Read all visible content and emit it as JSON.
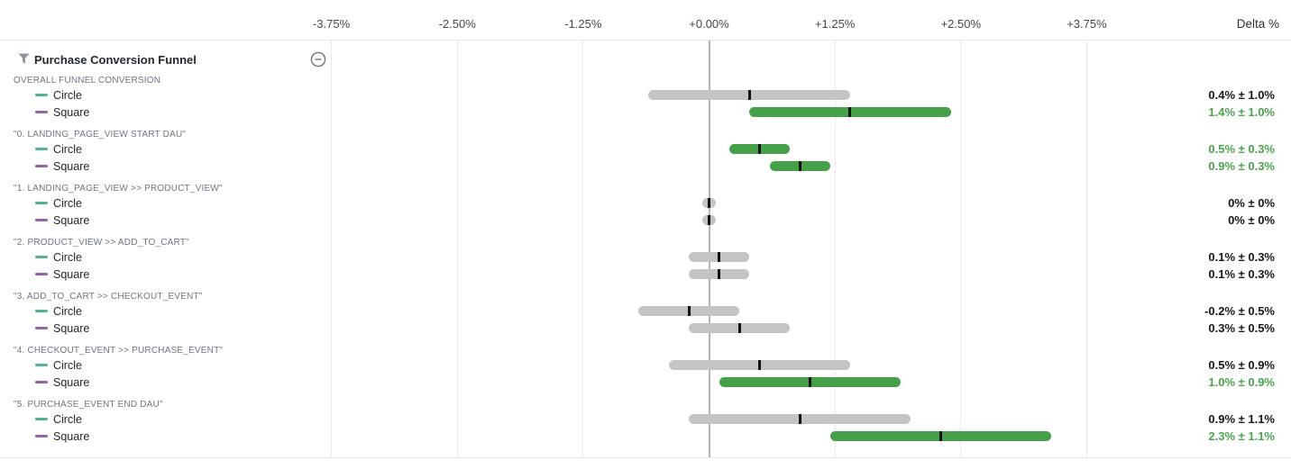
{
  "header": {
    "title": "Purchase Conversion Funnel"
  },
  "axis": {
    "delta_label": "Delta %",
    "ticks": [
      {
        "label": "-3.75%",
        "pct": -3.75
      },
      {
        "label": "-2.50%",
        "pct": -2.5
      },
      {
        "label": "-1.25%",
        "pct": -1.25
      },
      {
        "label": "+0.00%",
        "pct": 0
      },
      {
        "label": "+1.25%",
        "pct": 1.25
      },
      {
        "label": "+2.50%",
        "pct": 2.5
      },
      {
        "label": "+3.75%",
        "pct": 3.75
      }
    ]
  },
  "legend_variants": [
    {
      "name": "Circle",
      "swatch_color": "#57b295"
    },
    {
      "name": "Square",
      "swatch_color": "#9a5fb0"
    }
  ],
  "chart_data": {
    "type": "bar",
    "subtype": "horizontal_confidence_interval",
    "title": "Purchase Conversion Funnel",
    "xlabel": "Delta %",
    "x_ticks": [
      "-3.75%",
      "-2.50%",
      "-1.25%",
      "+0.00%",
      "+1.25%",
      "+2.50%",
      "+3.75%"
    ],
    "x_tick_pcts": [
      -3.75,
      -2.5,
      -1.25,
      0,
      1.25,
      2.5,
      3.75
    ],
    "grid": true,
    "zero_line": true,
    "groups": [
      {
        "label": "OVERALL FUNNEL CONVERSION",
        "rows": [
          {
            "variant": "Circle",
            "delta_pct": 0.4,
            "margin_pct": 1.0,
            "display": "0.4% ± 1.0%",
            "significant": false
          },
          {
            "variant": "Square",
            "delta_pct": 1.4,
            "margin_pct": 1.0,
            "display": "1.4% ± 1.0%",
            "significant": true
          }
        ]
      },
      {
        "label": "\"0. LANDING_PAGE_VIEW START DAU\"",
        "rows": [
          {
            "variant": "Circle",
            "delta_pct": 0.5,
            "margin_pct": 0.3,
            "display": "0.5% ± 0.3%",
            "significant": true
          },
          {
            "variant": "Square",
            "delta_pct": 0.9,
            "margin_pct": 0.3,
            "display": "0.9% ± 0.3%",
            "significant": true
          }
        ]
      },
      {
        "label": "\"1. LANDING_PAGE_VIEW >> PRODUCT_VIEW\"",
        "rows": [
          {
            "variant": "Circle",
            "delta_pct": 0,
            "margin_pct": 0,
            "display": "0% ± 0%",
            "significant": false
          },
          {
            "variant": "Square",
            "delta_pct": 0,
            "margin_pct": 0,
            "display": "0% ± 0%",
            "significant": false
          }
        ]
      },
      {
        "label": "\"2. PRODUCT_VIEW >> ADD_TO_CART\"",
        "rows": [
          {
            "variant": "Circle",
            "delta_pct": 0.1,
            "margin_pct": 0.3,
            "display": "0.1% ± 0.3%",
            "significant": false
          },
          {
            "variant": "Square",
            "delta_pct": 0.1,
            "margin_pct": 0.3,
            "display": "0.1% ± 0.3%",
            "significant": false
          }
        ]
      },
      {
        "label": "\"3. ADD_TO_CART >> CHECKOUT_EVENT\"",
        "rows": [
          {
            "variant": "Circle",
            "delta_pct": -0.2,
            "margin_pct": 0.5,
            "display": "-0.2% ± 0.5%",
            "significant": false
          },
          {
            "variant": "Square",
            "delta_pct": 0.3,
            "margin_pct": 0.5,
            "display": "0.3% ± 0.5%",
            "significant": false
          }
        ]
      },
      {
        "label": "\"4. CHECKOUT_EVENT >> PURCHASE_EVENT\"",
        "rows": [
          {
            "variant": "Circle",
            "delta_pct": 0.5,
            "margin_pct": 0.9,
            "display": "0.5% ± 0.9%",
            "significant": false
          },
          {
            "variant": "Square",
            "delta_pct": 1.0,
            "margin_pct": 0.9,
            "display": "1.0% ± 0.9%",
            "significant": true
          }
        ]
      },
      {
        "label": "\"5. PURCHASE_EVENT END DAU\"",
        "rows": [
          {
            "variant": "Circle",
            "delta_pct": 0.9,
            "margin_pct": 1.1,
            "display": "0.9% ± 1.1%",
            "significant": false
          },
          {
            "variant": "Square",
            "delta_pct": 2.3,
            "margin_pct": 1.1,
            "display": "2.3% ± 1.1%",
            "significant": true
          }
        ]
      }
    ]
  },
  "colors": {
    "positive_bar": "#46a049",
    "positive_text": "#4aa34e",
    "neutral_bar": "#c4c4c4",
    "estimate_tick": "#131313",
    "grid_line": "#e9e9e9",
    "zero_line": "#b3b3b3",
    "circle_swatch": "#57b295",
    "square_swatch": "#9a5fb0",
    "value_text": "#17191c",
    "group_label_text": "#6f7680",
    "axis_label_text": "#414851",
    "icon_gray": "#8d949c"
  }
}
